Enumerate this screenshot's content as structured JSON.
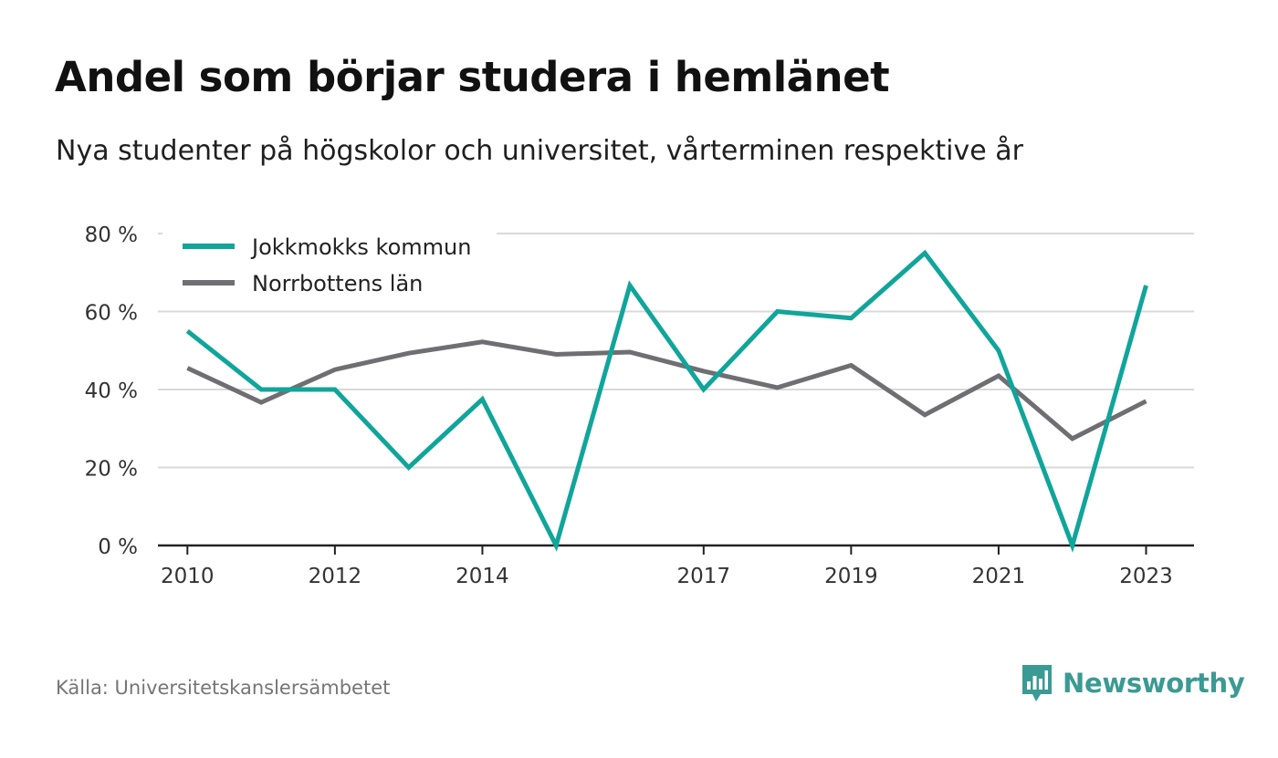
{
  "title": "Andel som börjar studera i hemlänet",
  "subtitle": "Nya studenter på högskolor och universitet, vårterminen respektive år",
  "source": "Källa: Universitetskanslersämbetet",
  "brand": {
    "name": "Newsworthy",
    "icon": "newsworthy-logo-icon",
    "color": "#3b9a93"
  },
  "chart_data": {
    "type": "line",
    "title": "",
    "xlabel": "",
    "ylabel": "",
    "x": [
      2010,
      2011,
      2012,
      2013,
      2014,
      2015,
      2016,
      2017,
      2018,
      2019,
      2020,
      2021,
      2022,
      2023
    ],
    "xticks": [
      "2010",
      "2012",
      "2014",
      "2017",
      "2019",
      "2021",
      "2023"
    ],
    "xlim": [
      2009.6,
      2023.65
    ],
    "ylim": [
      0,
      80
    ],
    "yticks": [
      0,
      20,
      40,
      60,
      80
    ],
    "ytick_labels": [
      "0 %",
      "20 %",
      "40 %",
      "60 %",
      "80 %"
    ],
    "grid": true,
    "legend_position": "top-left",
    "series": [
      {
        "name": "Jokkmokks kommun",
        "color": "#10a59a",
        "values": [
          55,
          40,
          40,
          20,
          37.5,
          0,
          66.7,
          40,
          60,
          58.3,
          75,
          50,
          0,
          66.7
        ]
      },
      {
        "name": "Norrbottens län",
        "color": "#6f6e72",
        "values": [
          45.5,
          36.7,
          45.1,
          49.3,
          52.2,
          49,
          49.6,
          44.7,
          40.5,
          46.2,
          33.5,
          43.5,
          27.4,
          37
        ]
      }
    ]
  }
}
